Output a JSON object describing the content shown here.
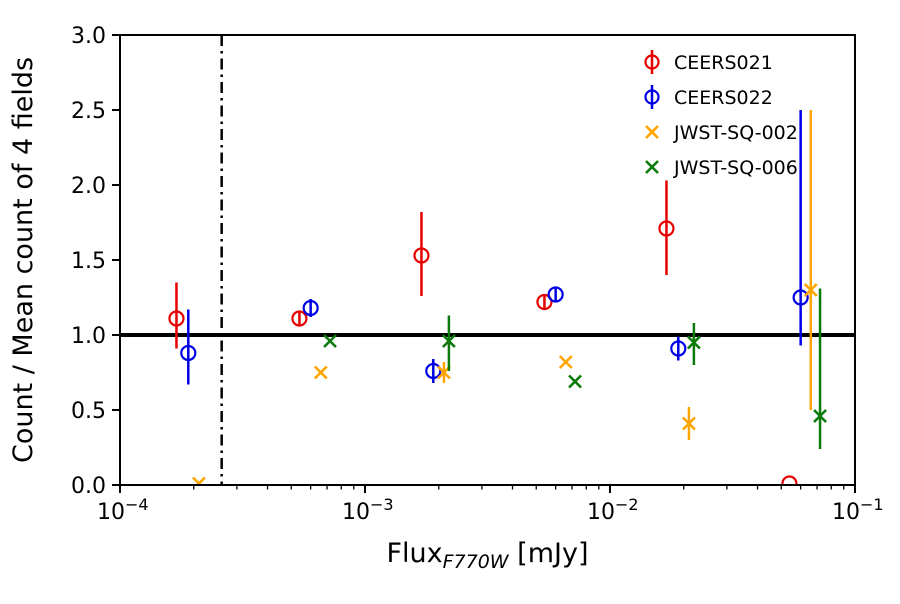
{
  "chart_data": {
    "type": "scatter",
    "title": "",
    "xlabel": {
      "main": "Flux",
      "sub": "F770W",
      "unit": " [mJy]"
    },
    "ylabel": "Count / Mean count of 4 fields",
    "xscale": "log",
    "xlim": [
      0.0001,
      0.1
    ],
    "ylim": [
      0.0,
      3.0
    ],
    "xticks": [
      0.0001,
      0.001,
      0.01,
      0.1
    ],
    "yticks": [
      0.0,
      0.5,
      1.0,
      1.5,
      2.0,
      2.5,
      3.0
    ],
    "ytick_labels": [
      "0.0",
      "0.5",
      "1.0",
      "1.5",
      "2.0",
      "2.5",
      "3.0"
    ],
    "grid": false,
    "legend_position": "upper right",
    "reference_lines": {
      "hline_y": 1.0,
      "hline_color": "#000000",
      "vline_x": 0.00026,
      "vline_style": "dash-dot",
      "vline_color": "#000000"
    },
    "series": [
      {
        "name": "CEERS021",
        "color": "#e60000",
        "marker": "circle-errorbar",
        "points": [
          {
            "x": 0.00017,
            "y": 1.11,
            "err_lo": 0.2,
            "err_hi": 0.24
          },
          {
            "x": 0.00054,
            "y": 1.11,
            "err_lo": 0.05,
            "err_hi": 0.05
          },
          {
            "x": 0.0017,
            "y": 1.53,
            "err_lo": 0.27,
            "err_hi": 0.29
          },
          {
            "x": 0.0054,
            "y": 1.22,
            "err_lo": 0.05,
            "err_hi": 0.05
          },
          {
            "x": 0.017,
            "y": 1.71,
            "err_lo": 0.31,
            "err_hi": 0.32
          },
          {
            "x": 0.054,
            "y": 0.01,
            "err_lo": 0,
            "err_hi": 0
          }
        ]
      },
      {
        "name": "CEERS022",
        "color": "#0000e6",
        "marker": "circle-errorbar",
        "points": [
          {
            "x": 0.00019,
            "y": 0.88,
            "err_lo": 0.21,
            "err_hi": 0.29
          },
          {
            "x": 0.0006,
            "y": 1.18,
            "err_lo": 0.06,
            "err_hi": 0.06
          },
          {
            "x": 0.0019,
            "y": 0.76,
            "err_lo": 0.08,
            "err_hi": 0.08
          },
          {
            "x": 0.006,
            "y": 1.27,
            "err_lo": 0.05,
            "err_hi": 0.05
          },
          {
            "x": 0.019,
            "y": 0.91,
            "err_lo": 0.08,
            "err_hi": 0.08
          },
          {
            "x": 0.06,
            "y": 1.25,
            "err_lo": 0.32,
            "err_hi": 1.25
          }
        ]
      },
      {
        "name": "JWST-SQ-002",
        "color": "#ffa500",
        "marker": "x-errorbar",
        "points": [
          {
            "x": 0.00021,
            "y": 0.01,
            "err_lo": 0,
            "err_hi": 0
          },
          {
            "x": 0.00066,
            "y": 0.75,
            "err_lo": 0,
            "err_hi": 0
          },
          {
            "x": 0.0021,
            "y": 0.75,
            "err_lo": 0.07,
            "err_hi": 0.07
          },
          {
            "x": 0.0066,
            "y": 0.82,
            "err_lo": 0,
            "err_hi": 0
          },
          {
            "x": 0.021,
            "y": 0.41,
            "err_lo": 0.11,
            "err_hi": 0.11
          },
          {
            "x": 0.066,
            "y": 1.3,
            "err_lo": 0.8,
            "err_hi": 1.2
          }
        ]
      },
      {
        "name": "JWST-SQ-006",
        "color": "#0b7a0b",
        "marker": "x-errorbar",
        "points": [
          {
            "x": 0.00072,
            "y": 0.96,
            "err_lo": 0,
            "err_hi": 0
          },
          {
            "x": 0.0022,
            "y": 0.96,
            "err_lo": 0.2,
            "err_hi": 0.17
          },
          {
            "x": 0.0072,
            "y": 0.69,
            "err_lo": 0,
            "err_hi": 0
          },
          {
            "x": 0.022,
            "y": 0.95,
            "err_lo": 0.15,
            "err_hi": 0.13
          },
          {
            "x": 0.072,
            "y": 0.46,
            "err_lo": 0.22,
            "err_hi": 0.85
          }
        ]
      }
    ]
  }
}
